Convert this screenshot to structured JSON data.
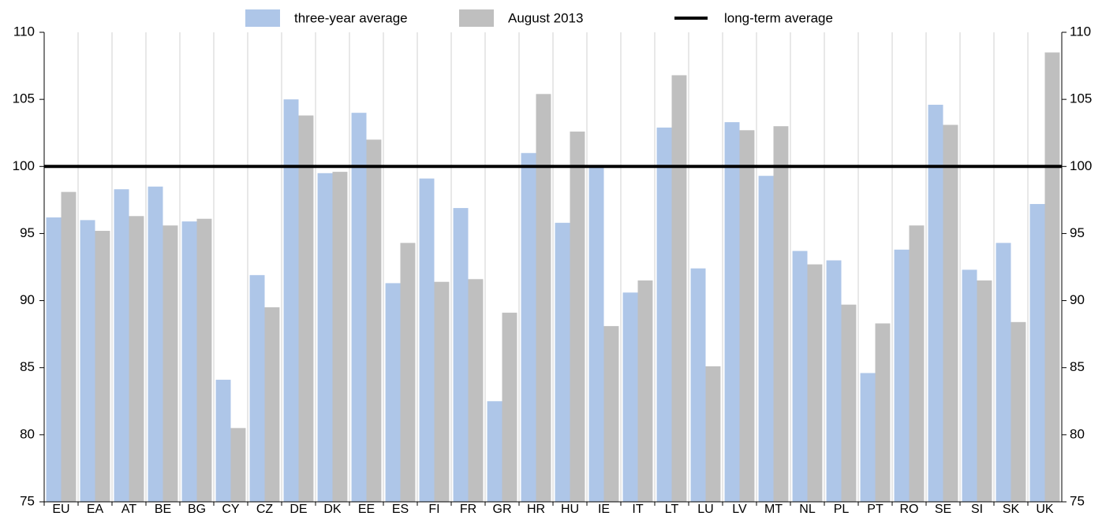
{
  "chart_data": {
    "type": "bar",
    "categories": [
      "EU",
      "EA",
      "AT",
      "BE",
      "BG",
      "CY",
      "CZ",
      "DE",
      "DK",
      "EE",
      "ES",
      "FI",
      "FR",
      "GR",
      "HR",
      "HU",
      "IE",
      "IT",
      "LT",
      "LU",
      "LV",
      "MT",
      "NL",
      "PL",
      "PT",
      "RO",
      "SE",
      "SI",
      "SK",
      "UK"
    ],
    "series": [
      {
        "name": "three-year average",
        "color": "#aec6e8",
        "values": [
          96.2,
          96.0,
          98.3,
          98.5,
          95.9,
          84.1,
          91.9,
          105.0,
          99.5,
          104.0,
          91.3,
          99.1,
          96.9,
          82.5,
          101.0,
          95.8,
          100.0,
          90.6,
          102.9,
          92.4,
          103.3,
          99.3,
          93.7,
          93.0,
          84.6,
          93.8,
          104.6,
          92.3,
          94.3,
          97.2
        ]
      },
      {
        "name": "August 2013",
        "color": "#bfbfbf",
        "values": [
          98.1,
          95.2,
          96.3,
          95.6,
          96.1,
          80.5,
          89.5,
          103.8,
          99.6,
          102.0,
          94.3,
          91.4,
          91.6,
          89.1,
          105.4,
          102.6,
          88.1,
          91.5,
          106.8,
          85.1,
          102.7,
          103.0,
          92.7,
          89.7,
          88.3,
          95.6,
          103.1,
          91.5,
          88.4,
          108.5
        ]
      }
    ],
    "reference_line": {
      "name": "long-term average",
      "value": 100,
      "color": "#000000"
    },
    "ylim": [
      75,
      110
    ],
    "yticks": [
      75,
      80,
      85,
      90,
      95,
      100,
      105,
      110
    ],
    "y2lim": [
      75,
      110
    ],
    "y2ticks": [
      75,
      80,
      85,
      90,
      95,
      100,
      105,
      110
    ],
    "grid": true
  }
}
